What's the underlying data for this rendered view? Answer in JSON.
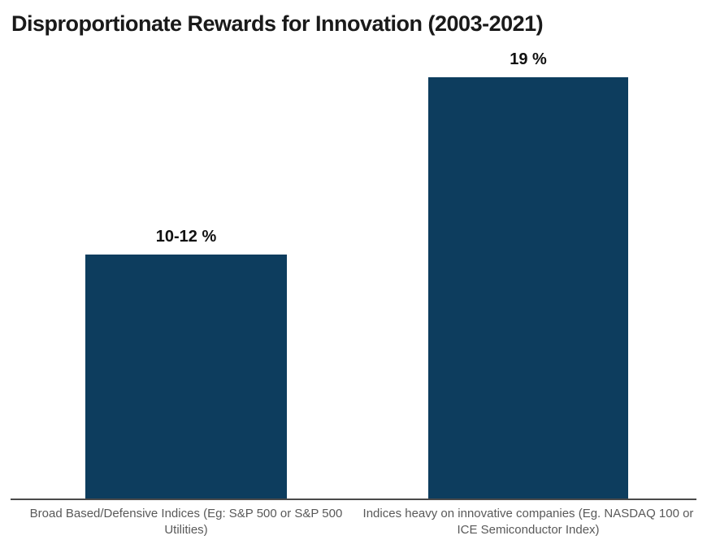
{
  "chart_data": {
    "type": "bar",
    "title": "Disproportionate Rewards for Innovation (2003-2021)",
    "categories": [
      "Broad Based/Defensive Indices (Eg: S&P 500 or S&P 500 Utilities)",
      "Indices heavy on innovative companies (Eg. NASDAQ 100 or ICE Semiconductor Index)"
    ],
    "values": [
      11,
      19
    ],
    "value_labels": [
      "10-12 %",
      "19 %"
    ],
    "value_ranges": [
      [
        10,
        12
      ],
      [
        19,
        19
      ]
    ],
    "xlabel": "",
    "ylabel": "",
    "ylim": [
      0,
      19
    ],
    "grid": false,
    "legend": false,
    "y_axis_visible": false,
    "x_axis_visible": true,
    "colors": {
      "bar": "#0d3d5e",
      "axis_line": "#4a4a4a",
      "title_text": "#1a1a1a",
      "value_label_text": "#111111",
      "category_label_text": "#595959",
      "background": "#ffffff"
    }
  }
}
